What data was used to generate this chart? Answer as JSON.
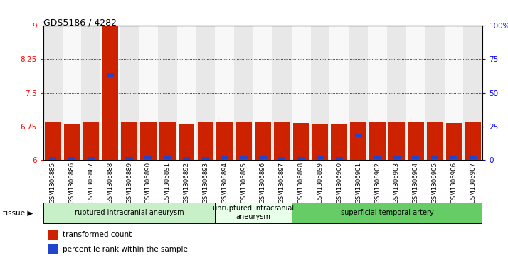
{
  "title": "GDS5186 / 4282",
  "samples": [
    "GSM1306885",
    "GSM1306886",
    "GSM1306887",
    "GSM1306888",
    "GSM1306889",
    "GSM1306890",
    "GSM1306891",
    "GSM1306892",
    "GSM1306893",
    "GSM1306894",
    "GSM1306895",
    "GSM1306896",
    "GSM1306897",
    "GSM1306898",
    "GSM1306899",
    "GSM1306900",
    "GSM1306901",
    "GSM1306902",
    "GSM1306903",
    "GSM1306904",
    "GSM1306905",
    "GSM1306906",
    "GSM1306907"
  ],
  "red_values": [
    6.84,
    6.8,
    6.84,
    9.0,
    6.84,
    6.86,
    6.86,
    6.8,
    6.86,
    6.86,
    6.86,
    6.86,
    6.86,
    6.82,
    6.8,
    6.8,
    6.84,
    6.86,
    6.84,
    6.84,
    6.84,
    6.82,
    6.84
  ],
  "blue_values": [
    6.03,
    6.03,
    6.03,
    7.9,
    6.03,
    6.05,
    6.05,
    6.03,
    6.03,
    6.05,
    6.05,
    6.05,
    6.03,
    6.03,
    6.05,
    6.03,
    6.55,
    6.05,
    6.05,
    6.05,
    6.05,
    6.05,
    6.05
  ],
  "ylim_left": [
    6,
    9
  ],
  "ylim_right": [
    0,
    100
  ],
  "yticks_left": [
    6,
    6.75,
    7.5,
    8.25,
    9
  ],
  "ytick_labels_left": [
    "6",
    "6.75",
    "7.5",
    "8.25",
    "9"
  ],
  "yticks_right": [
    0,
    25,
    50,
    75,
    100
  ],
  "ytick_labels_right": [
    "0",
    "25",
    "50",
    "75",
    "100%"
  ],
  "groups": [
    {
      "label": "ruptured intracranial aneurysm",
      "start": 0,
      "end": 8,
      "color": "#c8f0c8"
    },
    {
      "label": "unruptured intracranial\naneurysm",
      "start": 9,
      "end": 12,
      "color": "#e8ffe8"
    },
    {
      "label": "superficial temporal artery",
      "start": 13,
      "end": 22,
      "color": "#66cc66"
    }
  ],
  "bar_color": "#cc2200",
  "blue_color": "#2244cc",
  "col_bg_even": "#e8e8e8",
  "col_bg_odd": "#f8f8f8",
  "plot_bg": "#ffffff",
  "tissue_label": "tissue",
  "legend_red": "transformed count",
  "legend_blue": "percentile rank within the sample"
}
